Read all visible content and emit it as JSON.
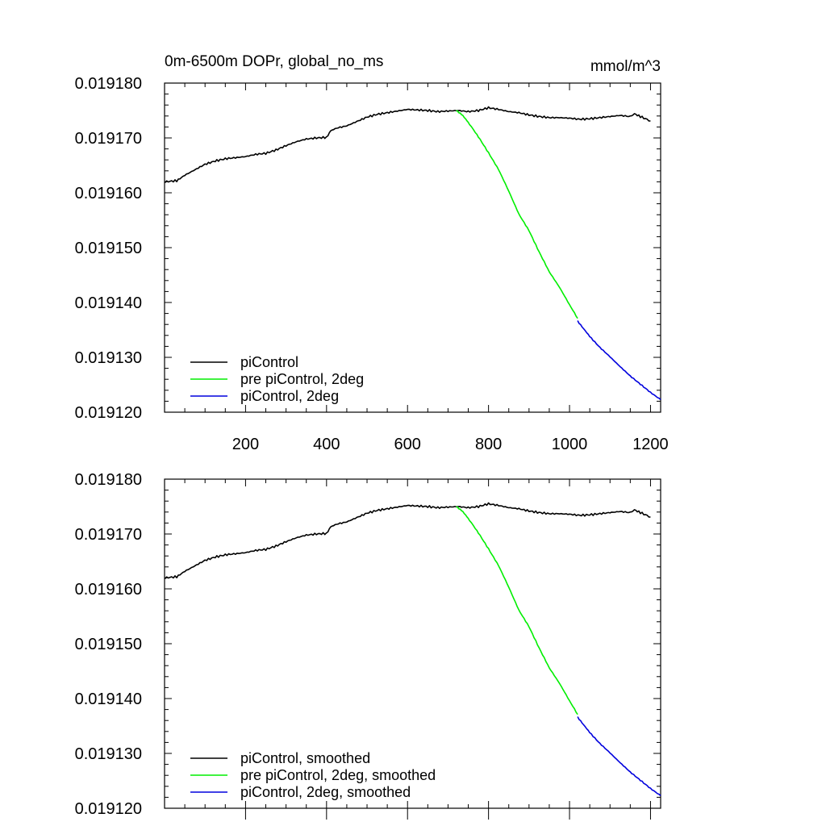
{
  "figure": {
    "title_left": "0m-6500m DOPr, global_no_ms",
    "title_right": "mmol/m^3"
  },
  "colors": {
    "piControl": "#000000",
    "pre_piControl_2deg": "#00ee00",
    "piControl_2deg": "#0000dd"
  },
  "chart_data": [
    {
      "type": "line",
      "title": "0m-6500m DOPr, global_no_ms",
      "units": "mmol/m^3",
      "xlim": [
        0,
        1225
      ],
      "ylim": [
        0.01912,
        0.01918
      ],
      "xticks": [
        200,
        400,
        600,
        800,
        1000,
        1200
      ],
      "xtick_labels": [
        "200",
        "400",
        "600",
        "800",
        "1000",
        "1200"
      ],
      "yticks": [
        0.01912,
        0.01913,
        0.01914,
        0.01915,
        0.01916,
        0.01917,
        0.01918
      ],
      "ytick_labels": [
        "0.019120",
        "0.019130",
        "0.019140",
        "0.019150",
        "0.019160",
        "0.019170",
        "0.019180"
      ],
      "legend_position": "bottom-left",
      "series": [
        {
          "name": "piControl",
          "color": "#000000",
          "x": [
            1,
            30,
            50,
            75,
            100,
            125,
            150,
            175,
            200,
            225,
            250,
            275,
            300,
            325,
            350,
            375,
            400,
            410,
            425,
            450,
            475,
            500,
            525,
            550,
            575,
            600,
            625,
            650,
            675,
            700,
            725,
            750,
            775,
            800,
            825,
            850,
            875,
            900,
            925,
            950,
            975,
            1000,
            1025,
            1050,
            1075,
            1100,
            1125,
            1150,
            1160,
            1175,
            1200
          ],
          "y": [
            0.019162,
            0.0191622,
            0.0191632,
            0.0191642,
            0.0191652,
            0.0191658,
            0.0191662,
            0.0191664,
            0.0191666,
            0.019167,
            0.0191672,
            0.0191678,
            0.0191686,
            0.0191693,
            0.0191698,
            0.01917,
            0.0191701,
            0.0191713,
            0.0191718,
            0.0191722,
            0.019173,
            0.0191738,
            0.0191743,
            0.0191746,
            0.0191749,
            0.0191752,
            0.0191751,
            0.019175,
            0.0191748,
            0.0191749,
            0.019175,
            0.0191748,
            0.019175,
            0.0191755,
            0.0191752,
            0.0191748,
            0.0191746,
            0.0191742,
            0.0191739,
            0.0191737,
            0.0191737,
            0.0191736,
            0.0191734,
            0.0191735,
            0.0191737,
            0.0191739,
            0.0191741,
            0.0191739,
            0.0191744,
            0.0191739,
            0.0191731
          ]
        },
        {
          "name": "pre piControl, 2deg",
          "color": "#00ee00",
          "x": [
            720,
            730,
            740,
            750,
            760,
            775,
            800,
            825,
            850,
            875,
            900,
            925,
            950,
            975,
            1000,
            1020
          ],
          "y": [
            0.019175,
            0.0191745,
            0.0191738,
            0.0191728,
            0.0191718,
            0.0191702,
            0.0191673,
            0.0191642,
            0.0191603,
            0.0191561,
            0.0191531,
            0.0191492,
            0.0191456,
            0.0191428,
            0.0191396,
            0.0191371
          ]
        },
        {
          "name": "piControl, 2deg",
          "color": "#0000dd",
          "x": [
            1020,
            1050,
            1075,
            1100,
            1125,
            1150,
            1175,
            1200,
            1225
          ],
          "y": [
            0.0191366,
            0.0191338,
            0.0191318,
            0.0191301,
            0.0191283,
            0.0191266,
            0.0191251,
            0.0191236,
            0.0191223
          ]
        }
      ],
      "legend": [
        "piControl",
        "pre piControl, 2deg",
        "piControl, 2deg"
      ]
    },
    {
      "type": "line",
      "title": "",
      "units": "",
      "xlim": [
        0,
        1225
      ],
      "ylim": [
        0.01912,
        0.01918
      ],
      "xticks": [
        200,
        400,
        600,
        800,
        1000,
        1200
      ],
      "xtick_labels": [],
      "yticks": [
        0.01912,
        0.01913,
        0.01914,
        0.01915,
        0.01916,
        0.01917,
        0.01918
      ],
      "ytick_labels": [
        "0.019120",
        "0.019130",
        "0.019140",
        "0.019150",
        "0.019160",
        "0.019170",
        "0.019180"
      ],
      "legend_position": "bottom-left",
      "series": [
        {
          "name": "piControl, smoothed",
          "color": "#000000",
          "x": [
            1,
            30,
            50,
            75,
            100,
            125,
            150,
            175,
            200,
            225,
            250,
            275,
            300,
            325,
            350,
            375,
            400,
            410,
            425,
            450,
            475,
            500,
            525,
            550,
            575,
            600,
            625,
            650,
            675,
            700,
            725,
            750,
            775,
            800,
            825,
            850,
            875,
            900,
            925,
            950,
            975,
            1000,
            1025,
            1050,
            1075,
            1100,
            1125,
            1150,
            1160,
            1175,
            1200
          ],
          "y": [
            0.019162,
            0.0191622,
            0.0191632,
            0.0191642,
            0.0191652,
            0.0191658,
            0.0191662,
            0.0191664,
            0.0191666,
            0.019167,
            0.0191672,
            0.0191678,
            0.0191686,
            0.0191693,
            0.0191698,
            0.01917,
            0.0191701,
            0.0191713,
            0.0191718,
            0.0191722,
            0.019173,
            0.0191738,
            0.0191743,
            0.0191746,
            0.0191749,
            0.0191752,
            0.0191751,
            0.019175,
            0.0191748,
            0.0191749,
            0.019175,
            0.0191748,
            0.019175,
            0.0191755,
            0.0191752,
            0.0191748,
            0.0191746,
            0.0191742,
            0.0191739,
            0.0191737,
            0.0191737,
            0.0191736,
            0.0191734,
            0.0191735,
            0.0191737,
            0.0191739,
            0.0191741,
            0.0191739,
            0.0191744,
            0.0191739,
            0.0191731
          ]
        },
        {
          "name": "pre piControl, 2deg, smoothed",
          "color": "#00ee00",
          "x": [
            720,
            730,
            740,
            750,
            760,
            775,
            800,
            825,
            850,
            875,
            900,
            925,
            950,
            975,
            1000,
            1020
          ],
          "y": [
            0.019175,
            0.0191745,
            0.0191738,
            0.0191728,
            0.0191718,
            0.0191702,
            0.0191673,
            0.0191642,
            0.0191603,
            0.0191561,
            0.0191531,
            0.0191492,
            0.0191456,
            0.0191428,
            0.0191396,
            0.0191371
          ]
        },
        {
          "name": "piControl, 2deg, smoothed",
          "color": "#0000dd",
          "x": [
            1020,
            1050,
            1075,
            1100,
            1125,
            1150,
            1175,
            1200,
            1225
          ],
          "y": [
            0.0191366,
            0.0191338,
            0.0191318,
            0.0191301,
            0.0191283,
            0.0191266,
            0.0191251,
            0.0191236,
            0.0191223
          ]
        }
      ],
      "legend": [
        "piControl, smoothed",
        "pre piControl, 2deg, smoothed",
        "piControl, 2deg, smoothed"
      ]
    }
  ]
}
